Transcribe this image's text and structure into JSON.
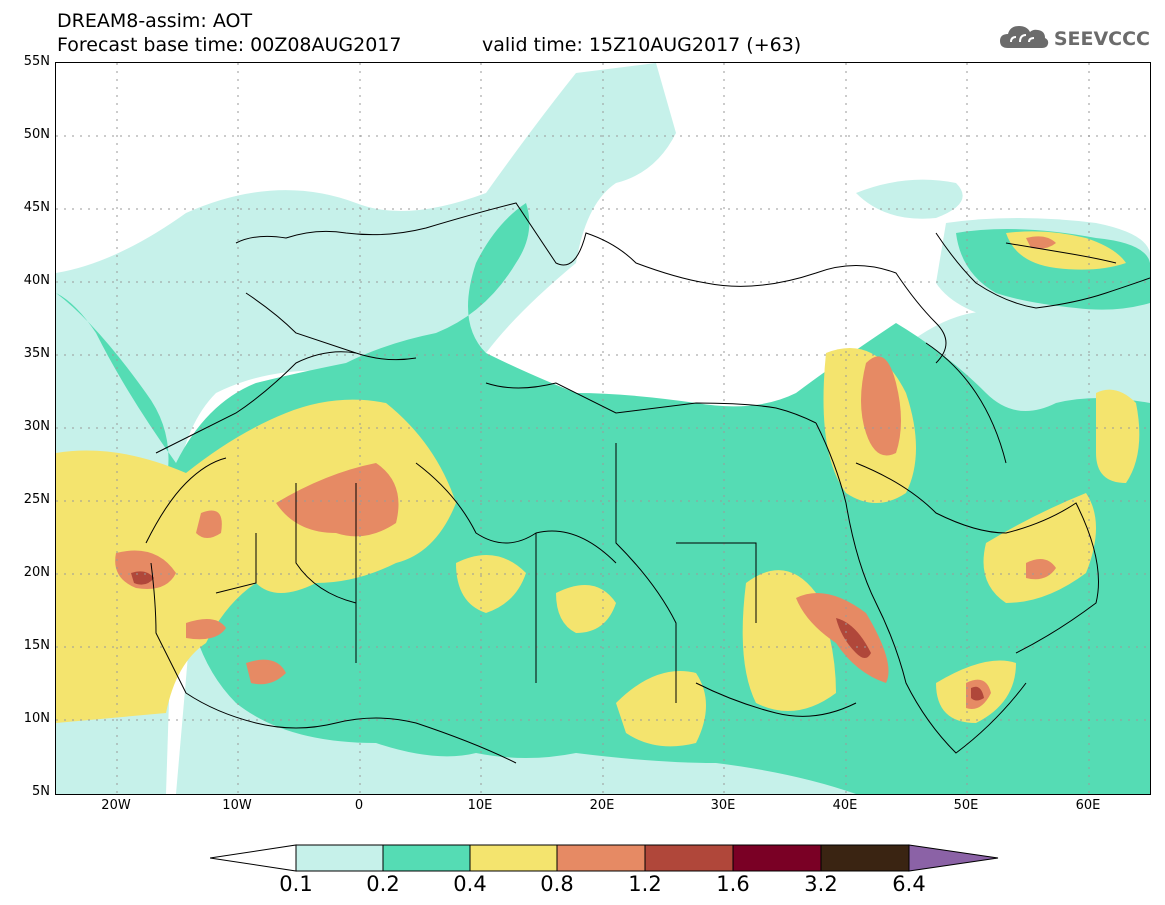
{
  "header": {
    "title_line_1": "DREAM8-assim: AOT",
    "title_line_2": "Forecast base time: 00Z08AUG2017",
    "valid_time": "valid time: 15Z10AUG2017 (+63)",
    "logo_text": "SEEVCCC",
    "logo_icon": "cloud-icon"
  },
  "map": {
    "lat_labels": [
      "55N",
      "50N",
      "45N",
      "40N",
      "35N",
      "30N",
      "25N",
      "20N",
      "15N",
      "10N",
      "5N"
    ],
    "lon_labels": [
      "20W",
      "10W",
      "0",
      "10E",
      "20E",
      "30E",
      "40E",
      "50E",
      "60E"
    ],
    "lat_range": [
      5,
      55
    ],
    "lon_range": [
      -25,
      65
    ],
    "gridlines": "dotted"
  },
  "legend": {
    "labels": [
      "0.1",
      "0.2",
      "0.4",
      "0.8",
      "1.2",
      "1.6",
      "3.2",
      "6.4"
    ],
    "colors": [
      "#ffffff",
      "#c6f1ea",
      "#55dcb4",
      "#f4e46e",
      "#e68a64",
      "#b0473a",
      "#7a0025",
      "#3a2412",
      "#8b62a6"
    ]
  },
  "colors": {
    "level_0_1_0_2": "#c6f1ea",
    "level_0_2_0_4": "#55dcb4",
    "level_0_4_0_8": "#f4e46e",
    "level_0_8_1_2": "#e68a64",
    "level_1_2_1_6": "#b0473a",
    "level_1_6_3_2": "#7a0025",
    "level_3_2_6_4": "#3a2412",
    "level_above_6_4": "#8b62a6"
  }
}
